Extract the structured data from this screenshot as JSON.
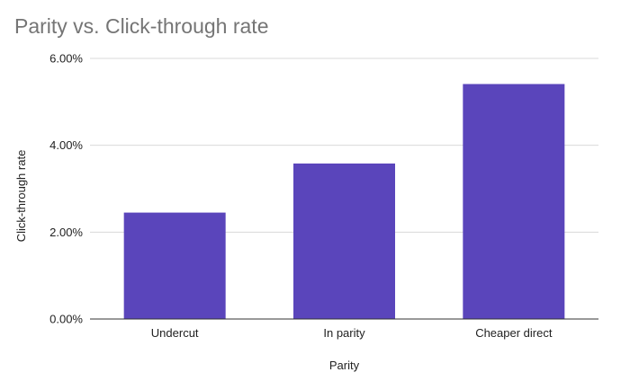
{
  "chart_data": {
    "type": "bar",
    "title": "Parity vs. Click-through rate",
    "xlabel": "Parity",
    "ylabel": "Click-through rate",
    "categories": [
      "Undercut",
      "In parity",
      "Cheaper direct"
    ],
    "values": [
      2.45,
      3.58,
      5.41
    ],
    "y_unit": "%",
    "ylim": [
      0,
      6
    ],
    "yticks": [
      0,
      2,
      4,
      6
    ],
    "ytick_labels": [
      "0.00%",
      "2.00%",
      "4.00%",
      "6.00%"
    ],
    "grid": true,
    "legend": "none",
    "colors": {
      "bar": "#5a45bb",
      "grid": "#d9d9d9",
      "axis": "#333333",
      "title": "#757575",
      "text": "#222222"
    }
  }
}
